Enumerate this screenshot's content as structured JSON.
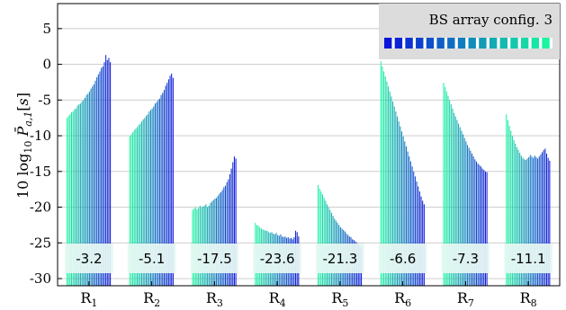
{
  "chart_data": {
    "type": "bar",
    "ylabel": "10 log10 P̄a,1[s]",
    "ylim": [
      -31,
      8.5
    ],
    "yticks": [
      -30,
      -25,
      -20,
      -15,
      -10,
      -5,
      0,
      5
    ],
    "ytick_labels": [
      "-30",
      "-25",
      "-20",
      "-15",
      "-10",
      "-5",
      "0",
      "5"
    ],
    "grid": "horizontal",
    "categories": [
      {
        "base": "R",
        "sub": "1"
      },
      {
        "base": "R",
        "sub": "2"
      },
      {
        "base": "R",
        "sub": "3"
      },
      {
        "base": "R",
        "sub": "4"
      },
      {
        "base": "R",
        "sub": "5"
      },
      {
        "base": "R",
        "sub": "6"
      },
      {
        "base": "R",
        "sub": "7"
      },
      {
        "base": "R",
        "sub": "8"
      }
    ],
    "annotations": [
      "-3.2",
      "-5.1",
      "-17.5",
      "-23.6",
      "-21.3",
      "-6.6",
      "-7.3",
      "-11.1"
    ],
    "colors": {
      "start": "#19f5a0",
      "end": "#0a14d8",
      "annotation_bg": "#e6f7f3",
      "legend_bg": "#dcdcdc"
    },
    "legend": {
      "label": "BS array config. 3",
      "placement": "top-right",
      "swatches": 16
    },
    "groups": [
      [
        -7.5,
        -7.2,
        -7,
        -6.7,
        -6.6,
        -6.3,
        -6.2,
        -5.8,
        -5.6,
        -5.5,
        -5.2,
        -5,
        -4.7,
        -4.3,
        -4.1,
        -3.8,
        -3.4,
        -3.1,
        -2.8,
        -2.3,
        -1.8,
        -1.4,
        -1,
        -0.5,
        -0.3,
        0.3,
        1.3,
        0.6,
        0.9,
        0.3
      ],
      [
        -10,
        -9.8,
        -9.5,
        -9.2,
        -9,
        -8.8,
        -8.5,
        -8.3,
        -8,
        -7.7,
        -7.5,
        -7.2,
        -7,
        -6.6,
        -6.4,
        -6.2,
        -5.9,
        -5.5,
        -5.3,
        -5,
        -4.8,
        -4.3,
        -4,
        -3.6,
        -3,
        -2.6,
        -2.1,
        -1.6,
        -1.3,
        -1.9
      ],
      [
        -20.4,
        -20.2,
        -20,
        -20.3,
        -20.1,
        -19.8,
        -20,
        -19.9,
        -19.8,
        -19.6,
        -20,
        -19.8,
        -19.4,
        -19.2,
        -19,
        -18.8,
        -18.7,
        -18.4,
        -18.1,
        -17.9,
        -17.6,
        -17.2,
        -17,
        -16.5,
        -16.1,
        -15.4,
        -14.6,
        -13.7,
        -12.9,
        -13.2
      ],
      [
        -22.2,
        -22.5,
        -22.6,
        -22.8,
        -23,
        -23.1,
        -23.2,
        -23.3,
        -23.3,
        -23.5,
        -23.6,
        -23.5,
        -23.7,
        -23.8,
        -23.6,
        -23.9,
        -24,
        -23.8,
        -24.1,
        -24.2,
        -24.1,
        -24.3,
        -24.2,
        -24.4,
        -24.3,
        -24.5,
        -24.2,
        -23.3,
        -23.5,
        -24.1
      ],
      [
        -16.9,
        -17.4,
        -17.8,
        -18.2,
        -18.7,
        -19.1,
        -19.6,
        -20,
        -20.4,
        -20.8,
        -21.2,
        -21.6,
        -21.9,
        -22.2,
        -22.5,
        -22.8,
        -23,
        -23.2,
        -23.4,
        -23.7,
        -23.9,
        -24.1,
        -24.2,
        -24.5,
        -24.6,
        -24.8,
        -25,
        -25.2,
        -25.4,
        -25.6
      ],
      [
        0.4,
        -0.3,
        -1,
        -1.7,
        -2.4,
        -3.1,
        -3.8,
        -4.5,
        -5.2,
        -5.9,
        -6.6,
        -7.3,
        -8,
        -8.7,
        -9.4,
        -10.1,
        -10.8,
        -11.5,
        -12.2,
        -12.9,
        -13.6,
        -14.3,
        -15,
        -15.7,
        -16.4,
        -17.1,
        -17.8,
        -18.5,
        -19.1,
        -19.6
      ],
      [
        -2.6,
        -3.2,
        -3.8,
        -4.4,
        -5,
        -5.6,
        -6.2,
        -6.8,
        -7.3,
        -7.8,
        -8.3,
        -8.8,
        -9.3,
        -9.8,
        -10.3,
        -10.8,
        -11.3,
        -11.7,
        -12.1,
        -12.5,
        -12.9,
        -13.3,
        -13.6,
        -13.9,
        -14.1,
        -14.3,
        -14.6,
        -14.8,
        -15,
        -15.1
      ],
      [
        -7,
        -7.8,
        -8.6,
        -9.3,
        -10,
        -10.6,
        -11.1,
        -11.6,
        -12,
        -12.4,
        -12.8,
        -13.1,
        -13.3,
        -13.4,
        -13.2,
        -13,
        -12.7,
        -12.9,
        -13.1,
        -12.8,
        -13,
        -13.2,
        -12.9,
        -12.6,
        -12.3,
        -12,
        -11.8,
        -12.5,
        -13.1,
        -13.5
      ]
    ]
  }
}
